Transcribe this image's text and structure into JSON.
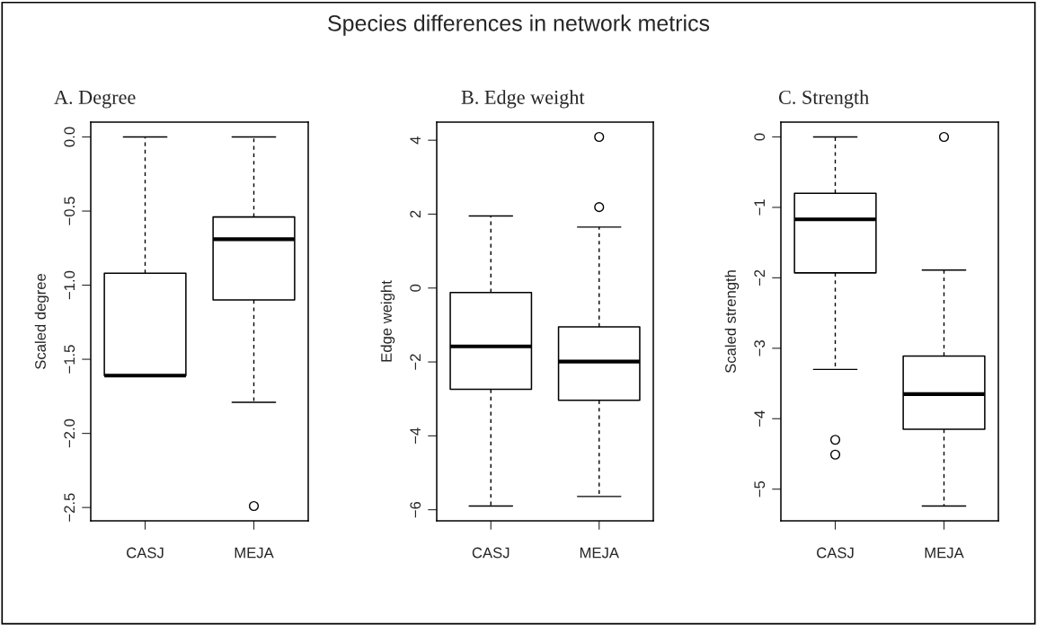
{
  "chart_data": [
    {
      "type": "box",
      "title": "A. Degree",
      "ylabel": "Scaled degree",
      "annotations": [
        "Species differences in network metrics"
      ],
      "categories": [
        "CASJ",
        "MEJA"
      ],
      "boxes": [
        {
          "low": -1.61,
          "q1": -1.61,
          "median": -1.61,
          "q3": -0.92,
          "high": 0.0
        },
        {
          "low": -1.79,
          "q1": -1.1,
          "median": -0.69,
          "q3": -0.54,
          "high": 0.0,
          "outliers": [
            -2.49
          ]
        }
      ],
      "ylim": [
        -2.59,
        0.1
      ],
      "yticks": [
        {
          "value": -2.5,
          "label": "−2.5"
        },
        {
          "value": -2.0,
          "label": "−2.0"
        },
        {
          "value": -1.5,
          "label": "−1.5"
        },
        {
          "value": -1.0,
          "label": "−1.0"
        },
        {
          "value": -0.5,
          "label": "−0.5"
        },
        {
          "value": 0.0,
          "label": "0.0"
        }
      ],
      "grid": false,
      "legend": false
    },
    {
      "type": "box",
      "title": "B. Edge weight",
      "ylabel": "Edge weight",
      "categories": [
        "CASJ",
        "MEJA"
      ],
      "boxes": [
        {
          "low": -5.9,
          "q1": -2.74,
          "median": -1.58,
          "q3": -0.12,
          "high": 1.95
        },
        {
          "low": -5.64,
          "q1": -3.04,
          "median": -1.99,
          "q3": -1.05,
          "high": 1.65,
          "outliers": [
            2.19,
            4.09
          ]
        }
      ],
      "ylim": [
        -6.3,
        4.49
      ],
      "yticks": [
        {
          "value": -6,
          "label": "−6"
        },
        {
          "value": -4,
          "label": "−4"
        },
        {
          "value": -2,
          "label": "−2"
        },
        0,
        2,
        4
      ],
      "grid": false,
      "legend": false
    },
    {
      "type": "box",
      "title": "C. Strength",
      "ylabel": "Scaled strength",
      "categories": [
        "CASJ",
        "MEJA"
      ],
      "boxes": [
        {
          "low": -3.3,
          "q1": -1.93,
          "median": -1.17,
          "q3": -0.8,
          "high": 0.0,
          "outliers": [
            -4.3,
            -4.51
          ]
        },
        {
          "low": -5.24,
          "q1": -4.15,
          "median": -3.65,
          "q3": -3.11,
          "high": -1.89,
          "outliers": [
            0.0
          ]
        }
      ],
      "ylim": [
        -5.45,
        0.21
      ],
      "yticks": [
        {
          "value": -5,
          "label": "−5"
        },
        {
          "value": -4,
          "label": "−4"
        },
        {
          "value": -3,
          "label": "−3"
        },
        {
          "value": -2,
          "label": "−2"
        },
        {
          "value": -1,
          "label": "−1"
        },
        0
      ],
      "grid": false,
      "legend": false
    }
  ]
}
